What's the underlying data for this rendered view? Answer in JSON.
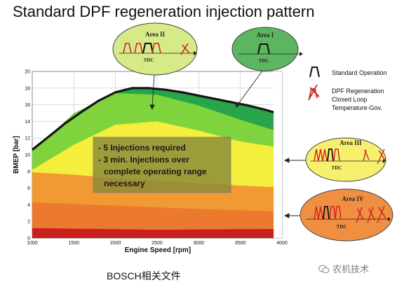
{
  "title": "Standard DPF regeneration injection pattern",
  "footer": "BOSCH相关文件",
  "watermark": "农机技术",
  "chart_data": {
    "type": "area",
    "xlabel": "Engine Speed [rpm]",
    "ylabel": "BMEP [bar]",
    "xlim": [
      1000,
      4000
    ],
    "ylim": [
      0,
      20
    ],
    "x_ticks": [
      1000,
      1500,
      2000,
      2500,
      3000,
      3500,
      4000
    ],
    "y_ticks": [
      0,
      2,
      4,
      6,
      8,
      10,
      12,
      14,
      16,
      18,
      20
    ],
    "grid": true,
    "full_load_curve": {
      "x": [
        1000,
        1200,
        1400,
        1600,
        1800,
        2000,
        2200,
        2400,
        2600,
        2800,
        3000,
        3200,
        3400,
        3600,
        3800,
        3900
      ],
      "y": [
        10.6,
        12.2,
        13.8,
        15.2,
        16.5,
        17.5,
        18.0,
        18.0,
        17.8,
        17.5,
        17.1,
        16.7,
        16.3,
        15.9,
        15.4,
        15.1
      ]
    },
    "regions": [
      {
        "label": "Area I",
        "color": "#28a54a"
      },
      {
        "label": "Area II",
        "color": "#7fd43d"
      },
      {
        "label": "Area III",
        "color": "#f4ee3c"
      },
      {
        "label": "Area IV",
        "color": "#f19a33"
      }
    ],
    "annotation": [
      "- 5 Injections required",
      "- 3 min. Injections over",
      "complete operating range",
      "necessary"
    ],
    "callouts": [
      {
        "area": "Area II",
        "tdc": "TDC"
      },
      {
        "area": "Area I",
        "tdc": "TDC"
      },
      {
        "area": "Area III",
        "tdc": "TDC"
      },
      {
        "area": "Area IV",
        "tdc": "TDC"
      }
    ],
    "legend": [
      {
        "label": "Standard Operation",
        "icon": "standard-pulse-icon"
      },
      {
        "label_lines": [
          "DPF Regeneration",
          "Closed Loop",
          "Temperature-Gov."
        ],
        "icon": "regeneration-pulse-icon"
      }
    ]
  }
}
